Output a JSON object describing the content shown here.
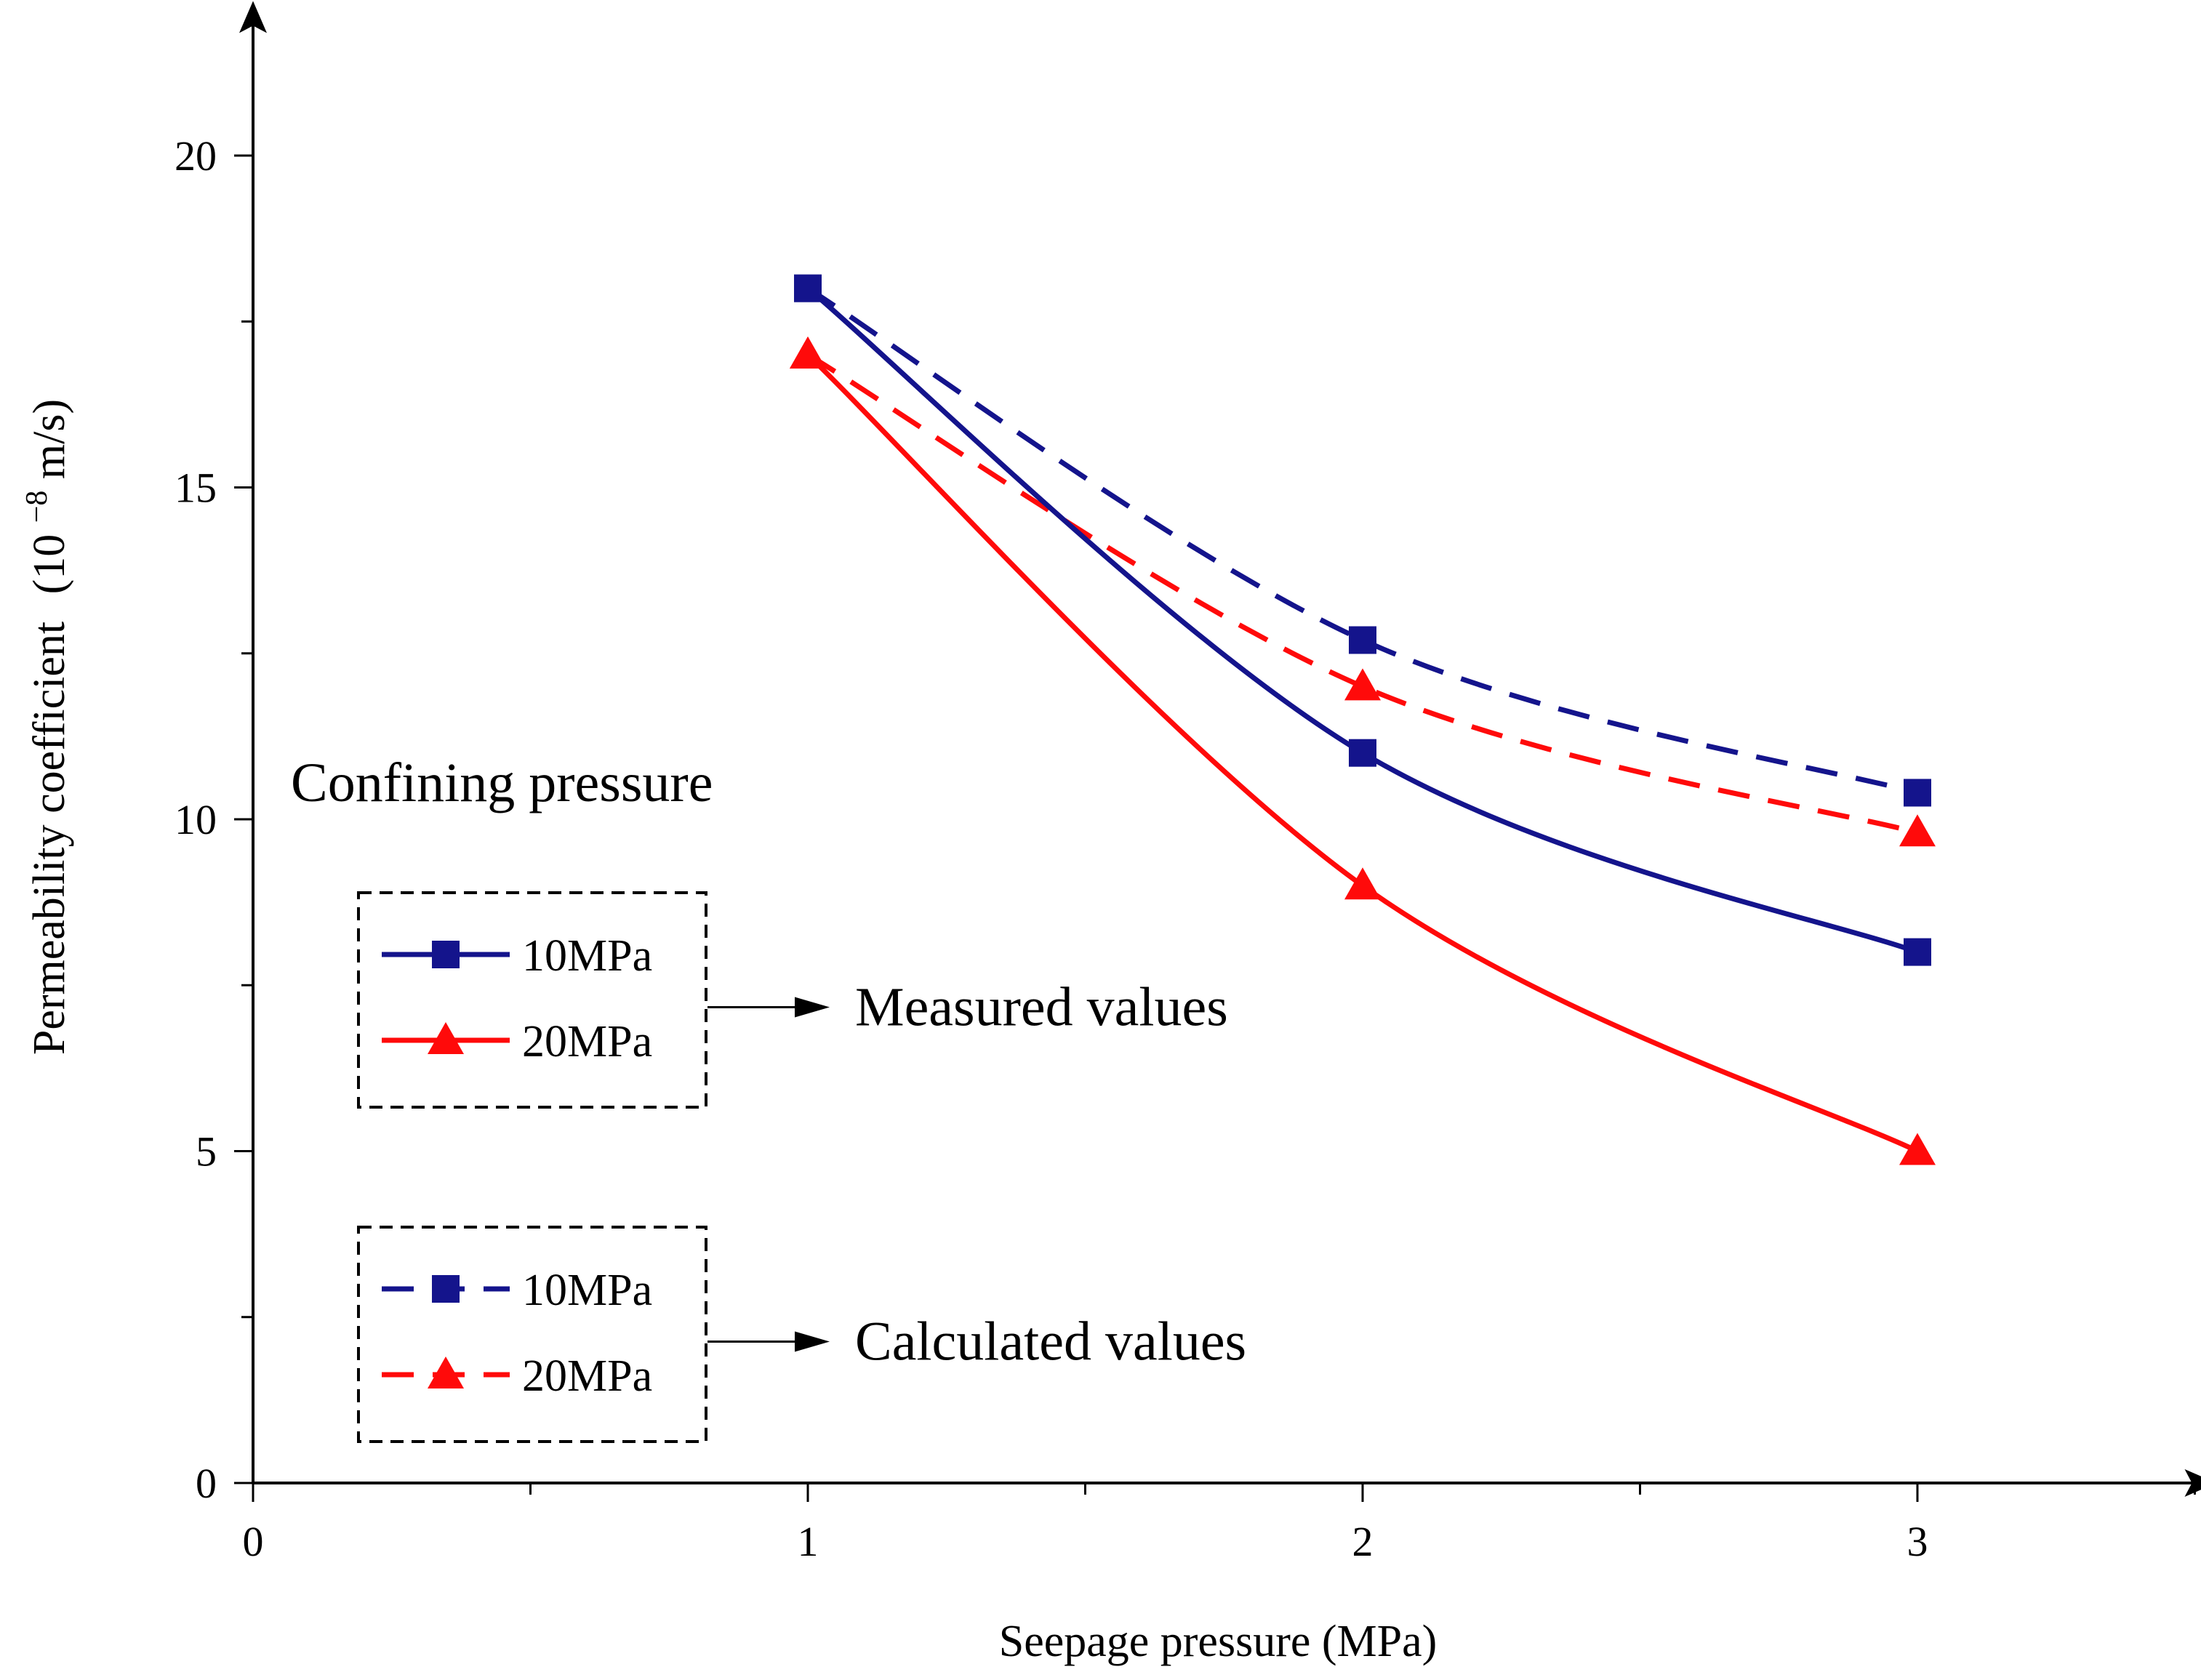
{
  "chart_data": {
    "type": "line",
    "title": "",
    "xlabel": "Seepage pressure (MPa)",
    "ylabel": {
      "text": "Permeability coefficient",
      "unit_prefix": "(10",
      "unit_exp": "−8",
      "unit_suffix": "m/s)"
    },
    "xlim": [
      0,
      3.5
    ],
    "ylim": [
      0,
      22
    ],
    "x_ticks": [
      0,
      1,
      2,
      3
    ],
    "y_ticks": [
      0,
      5,
      10,
      15,
      20
    ],
    "x": [
      1,
      2,
      3
    ],
    "series": [
      {
        "name": "10MPa",
        "group": "Measured values",
        "values": [
          18,
          11,
          8
        ],
        "color": "#14148c",
        "dash": "solid",
        "marker": "square"
      },
      {
        "name": "20MPa",
        "group": "Measured values",
        "values": [
          17,
          9,
          5
        ],
        "color": "#ff0a0a",
        "dash": "solid",
        "marker": "triangle"
      },
      {
        "name": "10MPa",
        "group": "Calculated values",
        "values": [
          18,
          12.7,
          10.4
        ],
        "color": "#14148c",
        "dash": "dashed",
        "marker": "square"
      },
      {
        "name": "20MPa",
        "group": "Calculated values",
        "values": [
          17,
          12,
          9.8
        ],
        "color": "#ff0a0a",
        "dash": "dashed",
        "marker": "triangle"
      }
    ],
    "legend": {
      "heading": "Confining pressure",
      "placement": "left",
      "groups": [
        "Measured values",
        "Calculated values"
      ]
    }
  }
}
